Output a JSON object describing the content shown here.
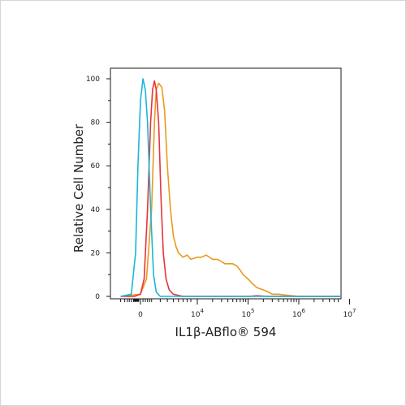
{
  "chart_data": {
    "type": "line",
    "xlabel": "IL1β-ABflo® 594",
    "ylabel": "Relative Cell Number",
    "ylim": [
      0,
      100
    ],
    "y_ticks": [
      {
        "value": 0,
        "label": "0"
      },
      {
        "value": 20,
        "label": "20"
      },
      {
        "value": 40,
        "label": "40"
      },
      {
        "value": 60,
        "label": "60"
      },
      {
        "value": 80,
        "label": "80"
      },
      {
        "value": 100,
        "label": "100"
      }
    ],
    "x_scale": "biexponential",
    "x_ticks": [
      {
        "value": 0,
        "base": "0",
        "exp": ""
      },
      {
        "value": 10000,
        "base": "10",
        "exp": "4"
      },
      {
        "value": 100000,
        "base": "10",
        "exp": "5"
      },
      {
        "value": 1000000,
        "base": "10",
        "exp": "6"
      },
      {
        "value": 10000000,
        "base": "10",
        "exp": "7"
      }
    ],
    "grid": false,
    "series": [
      {
        "color": "#e89b1c",
        "points": [
          [
            -2000,
            0
          ],
          [
            0,
            1
          ],
          [
            500,
            8
          ],
          [
            1000,
            40
          ],
          [
            1300,
            80
          ],
          [
            1500,
            95
          ],
          [
            1800,
            98
          ],
          [
            2200,
            96
          ],
          [
            2600,
            85
          ],
          [
            3000,
            60
          ],
          [
            3500,
            40
          ],
          [
            4000,
            28
          ],
          [
            4500,
            23
          ],
          [
            5000,
            20
          ],
          [
            6000,
            18
          ],
          [
            7000,
            19
          ],
          [
            8000,
            17
          ],
          [
            10000,
            18
          ],
          [
            12000,
            18
          ],
          [
            15000,
            19
          ],
          [
            20000,
            17
          ],
          [
            25000,
            17
          ],
          [
            30000,
            16
          ],
          [
            35000,
            15
          ],
          [
            40000,
            15
          ],
          [
            50000,
            15
          ],
          [
            60000,
            14
          ],
          [
            70000,
            12
          ],
          [
            80000,
            10
          ],
          [
            100000,
            8
          ],
          [
            120000,
            6
          ],
          [
            150000,
            4
          ],
          [
            200000,
            3
          ],
          [
            250000,
            2
          ],
          [
            300000,
            1
          ],
          [
            400000,
            1
          ],
          [
            600000,
            0.5
          ],
          [
            1000000,
            0
          ],
          [
            10000000,
            0
          ]
        ]
      },
      {
        "color": "#e8333a",
        "points": [
          [
            -2000,
            0
          ],
          [
            -500,
            0
          ],
          [
            0,
            1
          ],
          [
            300,
            8
          ],
          [
            600,
            40
          ],
          [
            900,
            80
          ],
          [
            1100,
            95
          ],
          [
            1300,
            99
          ],
          [
            1500,
            95
          ],
          [
            1800,
            80
          ],
          [
            2100,
            45
          ],
          [
            2400,
            20
          ],
          [
            2800,
            8
          ],
          [
            3300,
            3
          ],
          [
            4000,
            1
          ],
          [
            6000,
            0
          ],
          [
            100000,
            0
          ],
          [
            150000,
            0.3
          ],
          [
            250000,
            0
          ],
          [
            10000000,
            0
          ]
        ]
      },
      {
        "color": "#1ab6d8",
        "points": [
          [
            -2000,
            0
          ],
          [
            -800,
            1
          ],
          [
            -400,
            20
          ],
          [
            -200,
            60
          ],
          [
            0,
            90
          ],
          [
            200,
            100
          ],
          [
            400,
            95
          ],
          [
            600,
            80
          ],
          [
            900,
            40
          ],
          [
            1200,
            10
          ],
          [
            1500,
            2
          ],
          [
            2000,
            0
          ],
          [
            10000000,
            0
          ]
        ]
      }
    ]
  }
}
